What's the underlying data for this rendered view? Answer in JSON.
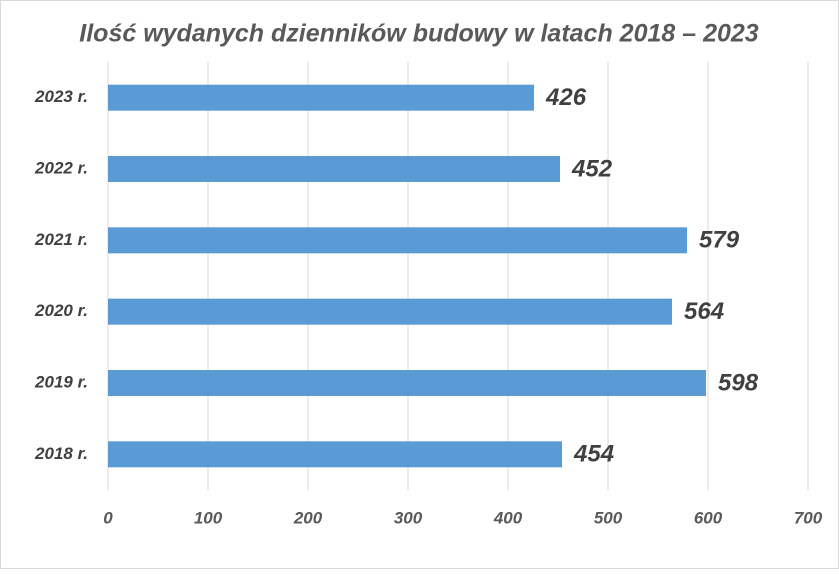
{
  "chart_data": {
    "type": "bar",
    "orientation": "horizontal",
    "title": "Ilość wydanych dzienników budowy w latach 2018 – 2023",
    "categories": [
      "2023 r.",
      "2022 r.",
      "2021 r.",
      "2020 r.",
      "2019 r.",
      "2018 r."
    ],
    "values": [
      426,
      452,
      579,
      564,
      598,
      454
    ],
    "color": "#5b9bd5",
    "xlim": [
      0,
      700
    ],
    "xticks": [
      0,
      100,
      200,
      300,
      400,
      500,
      600,
      700
    ],
    "grid": true
  }
}
